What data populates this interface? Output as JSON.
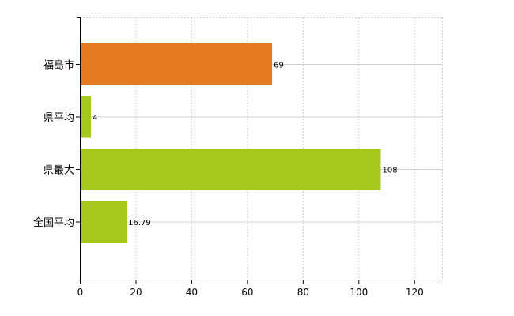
{
  "chart_data": {
    "type": "bar",
    "orientation": "horizontal",
    "categories": [
      "福島市",
      "県平均",
      "県最大",
      "全国平均"
    ],
    "values": [
      69,
      4,
      108,
      16.79
    ],
    "data_labels": [
      "69",
      "4",
      "108",
      "16.79"
    ],
    "bar_colors": [
      "#E57B20",
      "#A4C91C",
      "#A4C91C",
      "#A4C91C"
    ],
    "xlim": [
      0,
      130
    ],
    "x_ticks": [
      0,
      20,
      40,
      60,
      80,
      100,
      120
    ],
    "x_tick_labels": [
      "0",
      "20",
      "40",
      "60",
      "80",
      "100",
      "120"
    ],
    "grid": true,
    "grid_color": "#d0d0d0",
    "legend": "none",
    "title": "",
    "xlabel": "",
    "ylabel": ""
  }
}
